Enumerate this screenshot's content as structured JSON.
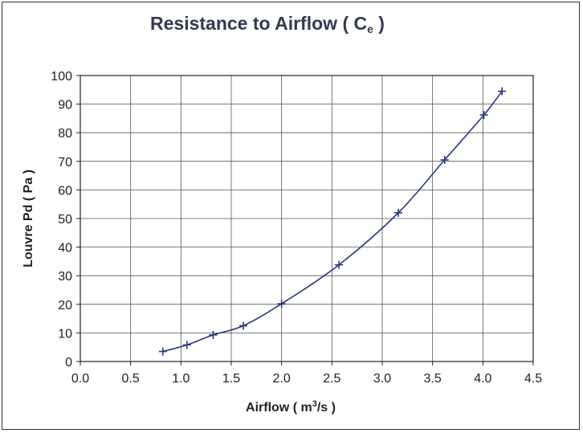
{
  "chart_data": {
    "type": "line",
    "title_main": "Resistance to Airflow  ( C",
    "title_sub": "e",
    "title_end": " )",
    "xlabel_main": "Airflow  ( m",
    "xlabel_sup": "3",
    "xlabel_end": "/s )",
    "ylabel": "Louvre Pd  ( Pa )",
    "xlim": [
      0.0,
      4.5
    ],
    "ylim": [
      0,
      100
    ],
    "x_ticks": [
      "0.0",
      "0.5",
      "1.0",
      "1.5",
      "2.0",
      "2.5",
      "3.0",
      "3.5",
      "4.0",
      "4.5"
    ],
    "y_ticks": [
      "0",
      "10",
      "20",
      "30",
      "40",
      "50",
      "60",
      "70",
      "80",
      "90",
      "100"
    ],
    "grid": true,
    "marker": "plus",
    "line_color": "#2b3a7a",
    "series": [
      {
        "x": [
          0.82,
          1.06,
          1.32,
          1.62,
          2.0,
          2.57,
          3.16,
          3.62,
          4.01,
          4.19
        ],
        "y": [
          3.5,
          5.8,
          9.3,
          12.5,
          20.2,
          33.8,
          52.0,
          70.5,
          86.2,
          94.5
        ]
      }
    ]
  }
}
